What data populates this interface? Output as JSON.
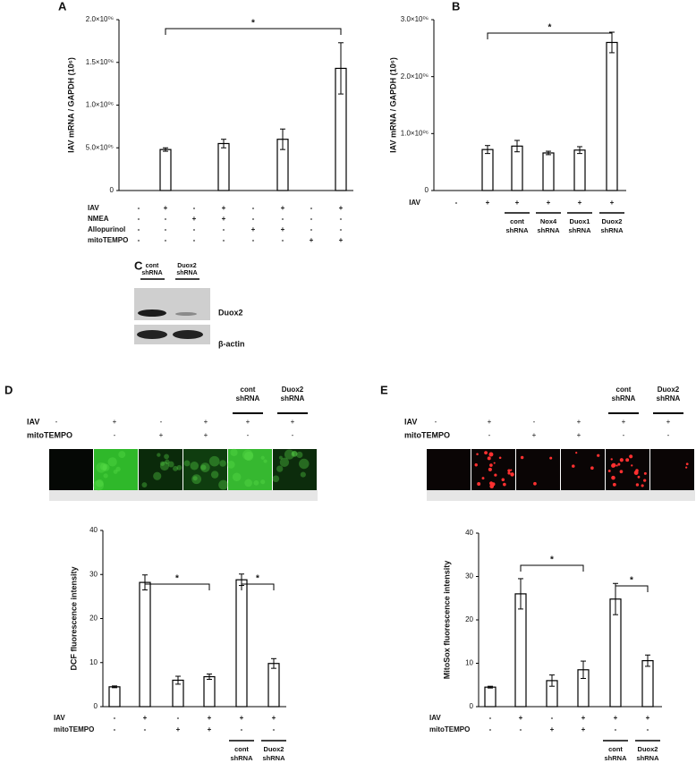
{
  "chart_data": [
    {
      "type": "bar",
      "label": "A",
      "ylabel": "IAV mRNA / GAPDH (10⁶)",
      "categories": [
        null,
        null,
        null,
        null,
        null,
        null,
        null,
        null
      ],
      "values": [
        null,
        480000,
        null,
        550000,
        null,
        600000,
        null,
        1430000
      ],
      "errors": [
        null,
        20000,
        null,
        50000,
        null,
        120000,
        null,
        300000
      ],
      "ylim": [
        0,
        2000000
      ],
      "yticks": [
        0,
        {
          "value": 500000,
          "label": "5.0×10⁰⁵"
        },
        {
          "value": 1000000,
          "label": "1.0×10⁰⁶"
        },
        {
          "value": 1500000,
          "label": "1.5×10⁰⁶"
        },
        {
          "value": 2000000,
          "label": "2.0×10⁰⁶"
        }
      ],
      "color": "#ffffff",
      "conditions": [
        {
          "name": "IAV",
          "values": [
            "-",
            "+",
            "-",
            "+",
            "-",
            "+",
            "-",
            "+"
          ]
        },
        {
          "name": "NMEA",
          "values": [
            "-",
            "-",
            "+",
            "+",
            "-",
            "-",
            "-",
            "-"
          ]
        },
        {
          "name": "Allopurinol",
          "values": [
            "-",
            "-",
            "-",
            "-",
            "+",
            "+",
            "-",
            "-"
          ]
        },
        {
          "name": "mitoTEMPO",
          "values": [
            "-",
            "-",
            "-",
            "-",
            "-",
            "-",
            "+",
            "+"
          ]
        }
      ],
      "significance": [
        "*"
      ]
    },
    {
      "type": "bar",
      "label": "B",
      "ylabel": "IAV mRNA / GAPDH (10⁶)",
      "categories": [
        null,
        null,
        null,
        null,
        null,
        null
      ],
      "values": [
        null,
        720000,
        780000,
        660000,
        710000,
        2600000
      ],
      "errors": [
        null,
        70000,
        100000,
        30000,
        60000,
        180000
      ],
      "ylim": [
        0,
        3000000
      ],
      "yticks": [
        0,
        {
          "value": 1000000,
          "label": "1.0×10⁰⁶"
        },
        {
          "value": 2000000,
          "label": "2.0×10⁰⁶"
        },
        {
          "value": 3000000,
          "label": "3.0×10⁰⁶"
        }
      ],
      "color": "#ffffff",
      "conditions": [
        {
          "name": "IAV",
          "values": [
            "-",
            "+",
            "+",
            "+",
            "+",
            "+"
          ]
        }
      ],
      "column_labels": [
        null,
        null,
        [
          "cont",
          "shRNA"
        ],
        [
          "Nox4",
          "shRNA"
        ],
        [
          "Duox1",
          "shRNA"
        ],
        [
          "Duox2",
          "shRNA"
        ]
      ],
      "significance": [
        "*"
      ]
    },
    {
      "type": "bar",
      "ylabel": "DCF fluorescence intensity",
      "categories": [
        null,
        null,
        null,
        null,
        null,
        null
      ],
      "values": [
        4.5,
        28.2,
        6,
        6.8,
        28.8,
        9.8
      ],
      "errors": [
        0.2,
        1.7,
        0.9,
        0.6,
        1.3,
        1.1
      ],
      "ylim": [
        0,
        40
      ],
      "yticks": [
        0,
        10,
        20,
        30,
        40
      ],
      "color": "#ffffff",
      "conditions": [
        {
          "name": "IAV",
          "values": [
            "-",
            "+",
            "-",
            "+",
            "+",
            "+"
          ]
        },
        {
          "name": "mitoTEMPO",
          "values": [
            "-",
            "-",
            "+",
            "+",
            "-",
            "-"
          ]
        }
      ],
      "column_labels": [
        null,
        null,
        null,
        null,
        [
          "cont",
          "shRNA"
        ],
        [
          "Duox2",
          "shRNA"
        ]
      ],
      "significance": [
        "*",
        "*"
      ]
    },
    {
      "type": "bar",
      "ylabel": "MitoSox fluorescence intensity",
      "categories": [
        null,
        null,
        null,
        null,
        null,
        null
      ],
      "values": [
        4.5,
        26,
        6,
        8.5,
        24.8,
        10.6
      ],
      "errors": [
        0.2,
        3.5,
        1.3,
        2,
        3.6,
        1.3
      ],
      "ylim": [
        0,
        40
      ],
      "yticks": [
        0,
        10,
        20,
        30,
        40
      ],
      "color": "#ffffff",
      "conditions": [
        {
          "name": "IAV",
          "values": [
            "-",
            "+",
            "-",
            "+",
            "+",
            "+"
          ]
        },
        {
          "name": "mitoTEMPO",
          "values": [
            "-",
            "-",
            "+",
            "+",
            "-",
            "-"
          ]
        }
      ],
      "column_labels": [
        null,
        null,
        null,
        null,
        [
          "cont",
          "shRNA"
        ],
        [
          "Duox2",
          "shRNA"
        ]
      ],
      "significance": [
        "*",
        "*"
      ]
    }
  ],
  "blot": {
    "label": "C",
    "columns": [
      [
        "cont",
        "shRNA"
      ],
      [
        "Duox2",
        "shRNA"
      ]
    ],
    "bands": [
      "Duox2",
      "β-actin"
    ]
  },
  "image_panels": [
    {
      "label": "D",
      "column_labels": [
        null,
        null,
        null,
        null,
        [
          "cont",
          "shRNA"
        ],
        [
          "Duox2",
          "shRNA"
        ]
      ],
      "conditions": [
        {
          "name": "IAV",
          "values": [
            "-",
            "+",
            "-",
            "+",
            "+",
            "+"
          ]
        },
        {
          "name": "mitoTEMPO",
          "values": [
            "-",
            "-",
            "+",
            "+",
            "-",
            "-"
          ]
        }
      ]
    },
    {
      "label": "E",
      "column_labels": [
        null,
        null,
        null,
        null,
        [
          "cont",
          "shRNA"
        ],
        [
          "Duox2",
          "shRNA"
        ]
      ],
      "conditions": [
        {
          "name": "IAV",
          "values": [
            "-",
            "+",
            "-",
            "+",
            "+",
            "+"
          ]
        },
        {
          "name": "mitoTEMPO",
          "values": [
            "-",
            "-",
            "+",
            "+",
            "-",
            "-"
          ]
        }
      ]
    }
  ]
}
